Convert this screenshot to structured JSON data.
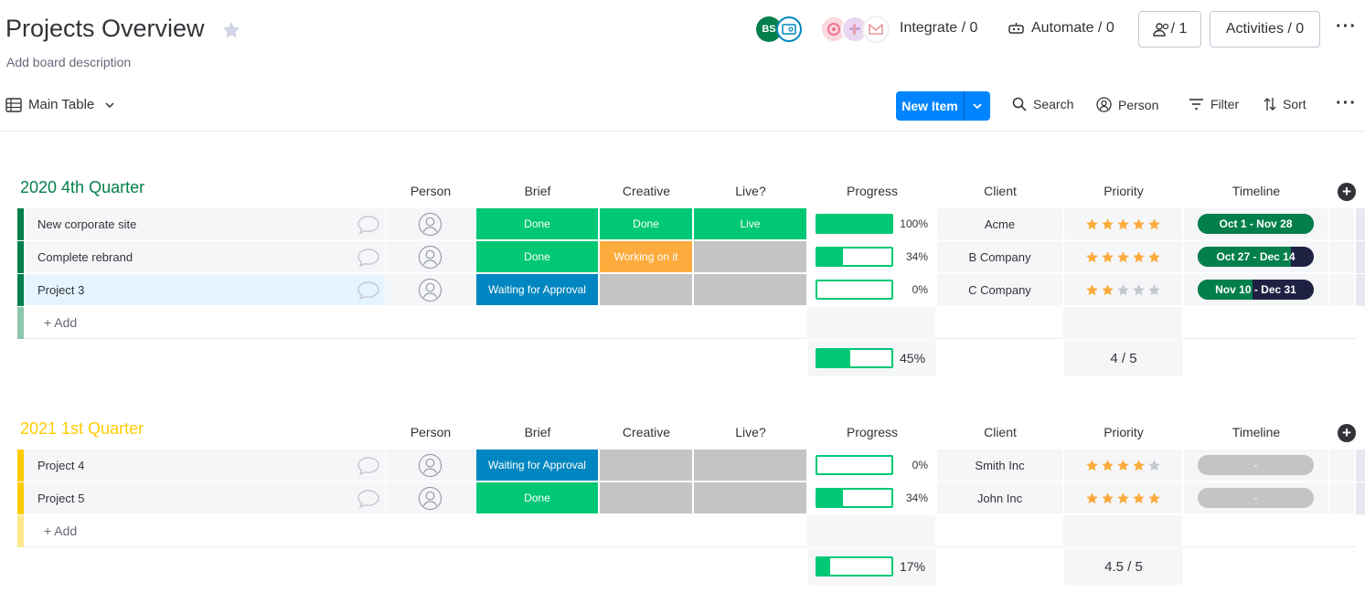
{
  "header": {
    "title": "Projects Overview",
    "description": "Add board description",
    "avatar_initials": "BS",
    "integrate": "Integrate / 0",
    "automate": "Automate / 0",
    "members": "/ 1",
    "activities": "Activities / 0"
  },
  "toolbar": {
    "view": "Main Table",
    "new_item": "New Item",
    "search": "Search",
    "person": "Person",
    "filter": "Filter",
    "sort": "Sort"
  },
  "columns": [
    "Person",
    "Brief",
    "Creative",
    "Live?",
    "Progress",
    "Client",
    "Priority",
    "Timeline"
  ],
  "colors": {
    "done": "#00c875",
    "working": "#fdab3d",
    "waiting": "#0086c0",
    "empty": "#c4c4c4",
    "group1": "#037f4c",
    "group2": "#ffcb00",
    "timeline_dark": "#037f4c",
    "timeline_navy": "#1f2143"
  },
  "groups": [
    {
      "title": "2020 4th Quarter",
      "color": "#037f4c",
      "add_label": "+ Add",
      "rows": [
        {
          "name": "New corporate site",
          "brief": "Done",
          "creative": "Done",
          "live": "Live",
          "progress": 100,
          "progress_label": "100%",
          "client": "Acme",
          "priority": 5,
          "timeline": "Oct 1 - Nov 28",
          "timeline_elapsed": 1.0
        },
        {
          "name": "Complete rebrand",
          "brief": "Done",
          "creative": "Working on it",
          "live": "",
          "progress": 34,
          "progress_label": "34%",
          "client": "B Company",
          "priority": 5,
          "timeline": "Oct 27 - Dec 14",
          "timeline_elapsed": 0.8
        },
        {
          "name": "Project 3",
          "brief": "Waiting for Approval",
          "creative": "",
          "live": "",
          "progress": 0,
          "progress_label": "0%",
          "client": "C Company",
          "priority": 2,
          "timeline": "Nov 10 - Dec 31",
          "timeline_elapsed": 0.47
        }
      ],
      "summary": {
        "progress": 45,
        "progress_label": "45%",
        "priority": "4 / 5"
      }
    },
    {
      "title": "2021 1st Quarter",
      "color": "#ffcb00",
      "add_label": "+ Add",
      "rows": [
        {
          "name": "Project 4",
          "brief": "Waiting for Approval",
          "creative": "",
          "live": "",
          "progress": 0,
          "progress_label": "0%",
          "client": "Smith Inc",
          "priority": 4,
          "timeline": "-",
          "timeline_elapsed": 0
        },
        {
          "name": "Project 5",
          "brief": "Done",
          "creative": "",
          "live": "",
          "progress": 34,
          "progress_label": "34%",
          "client": "John Inc",
          "priority": 5,
          "timeline": "-",
          "timeline_elapsed": 0
        }
      ],
      "summary": {
        "progress": 17,
        "progress_label": "17%",
        "priority": "4.5 / 5"
      }
    }
  ]
}
